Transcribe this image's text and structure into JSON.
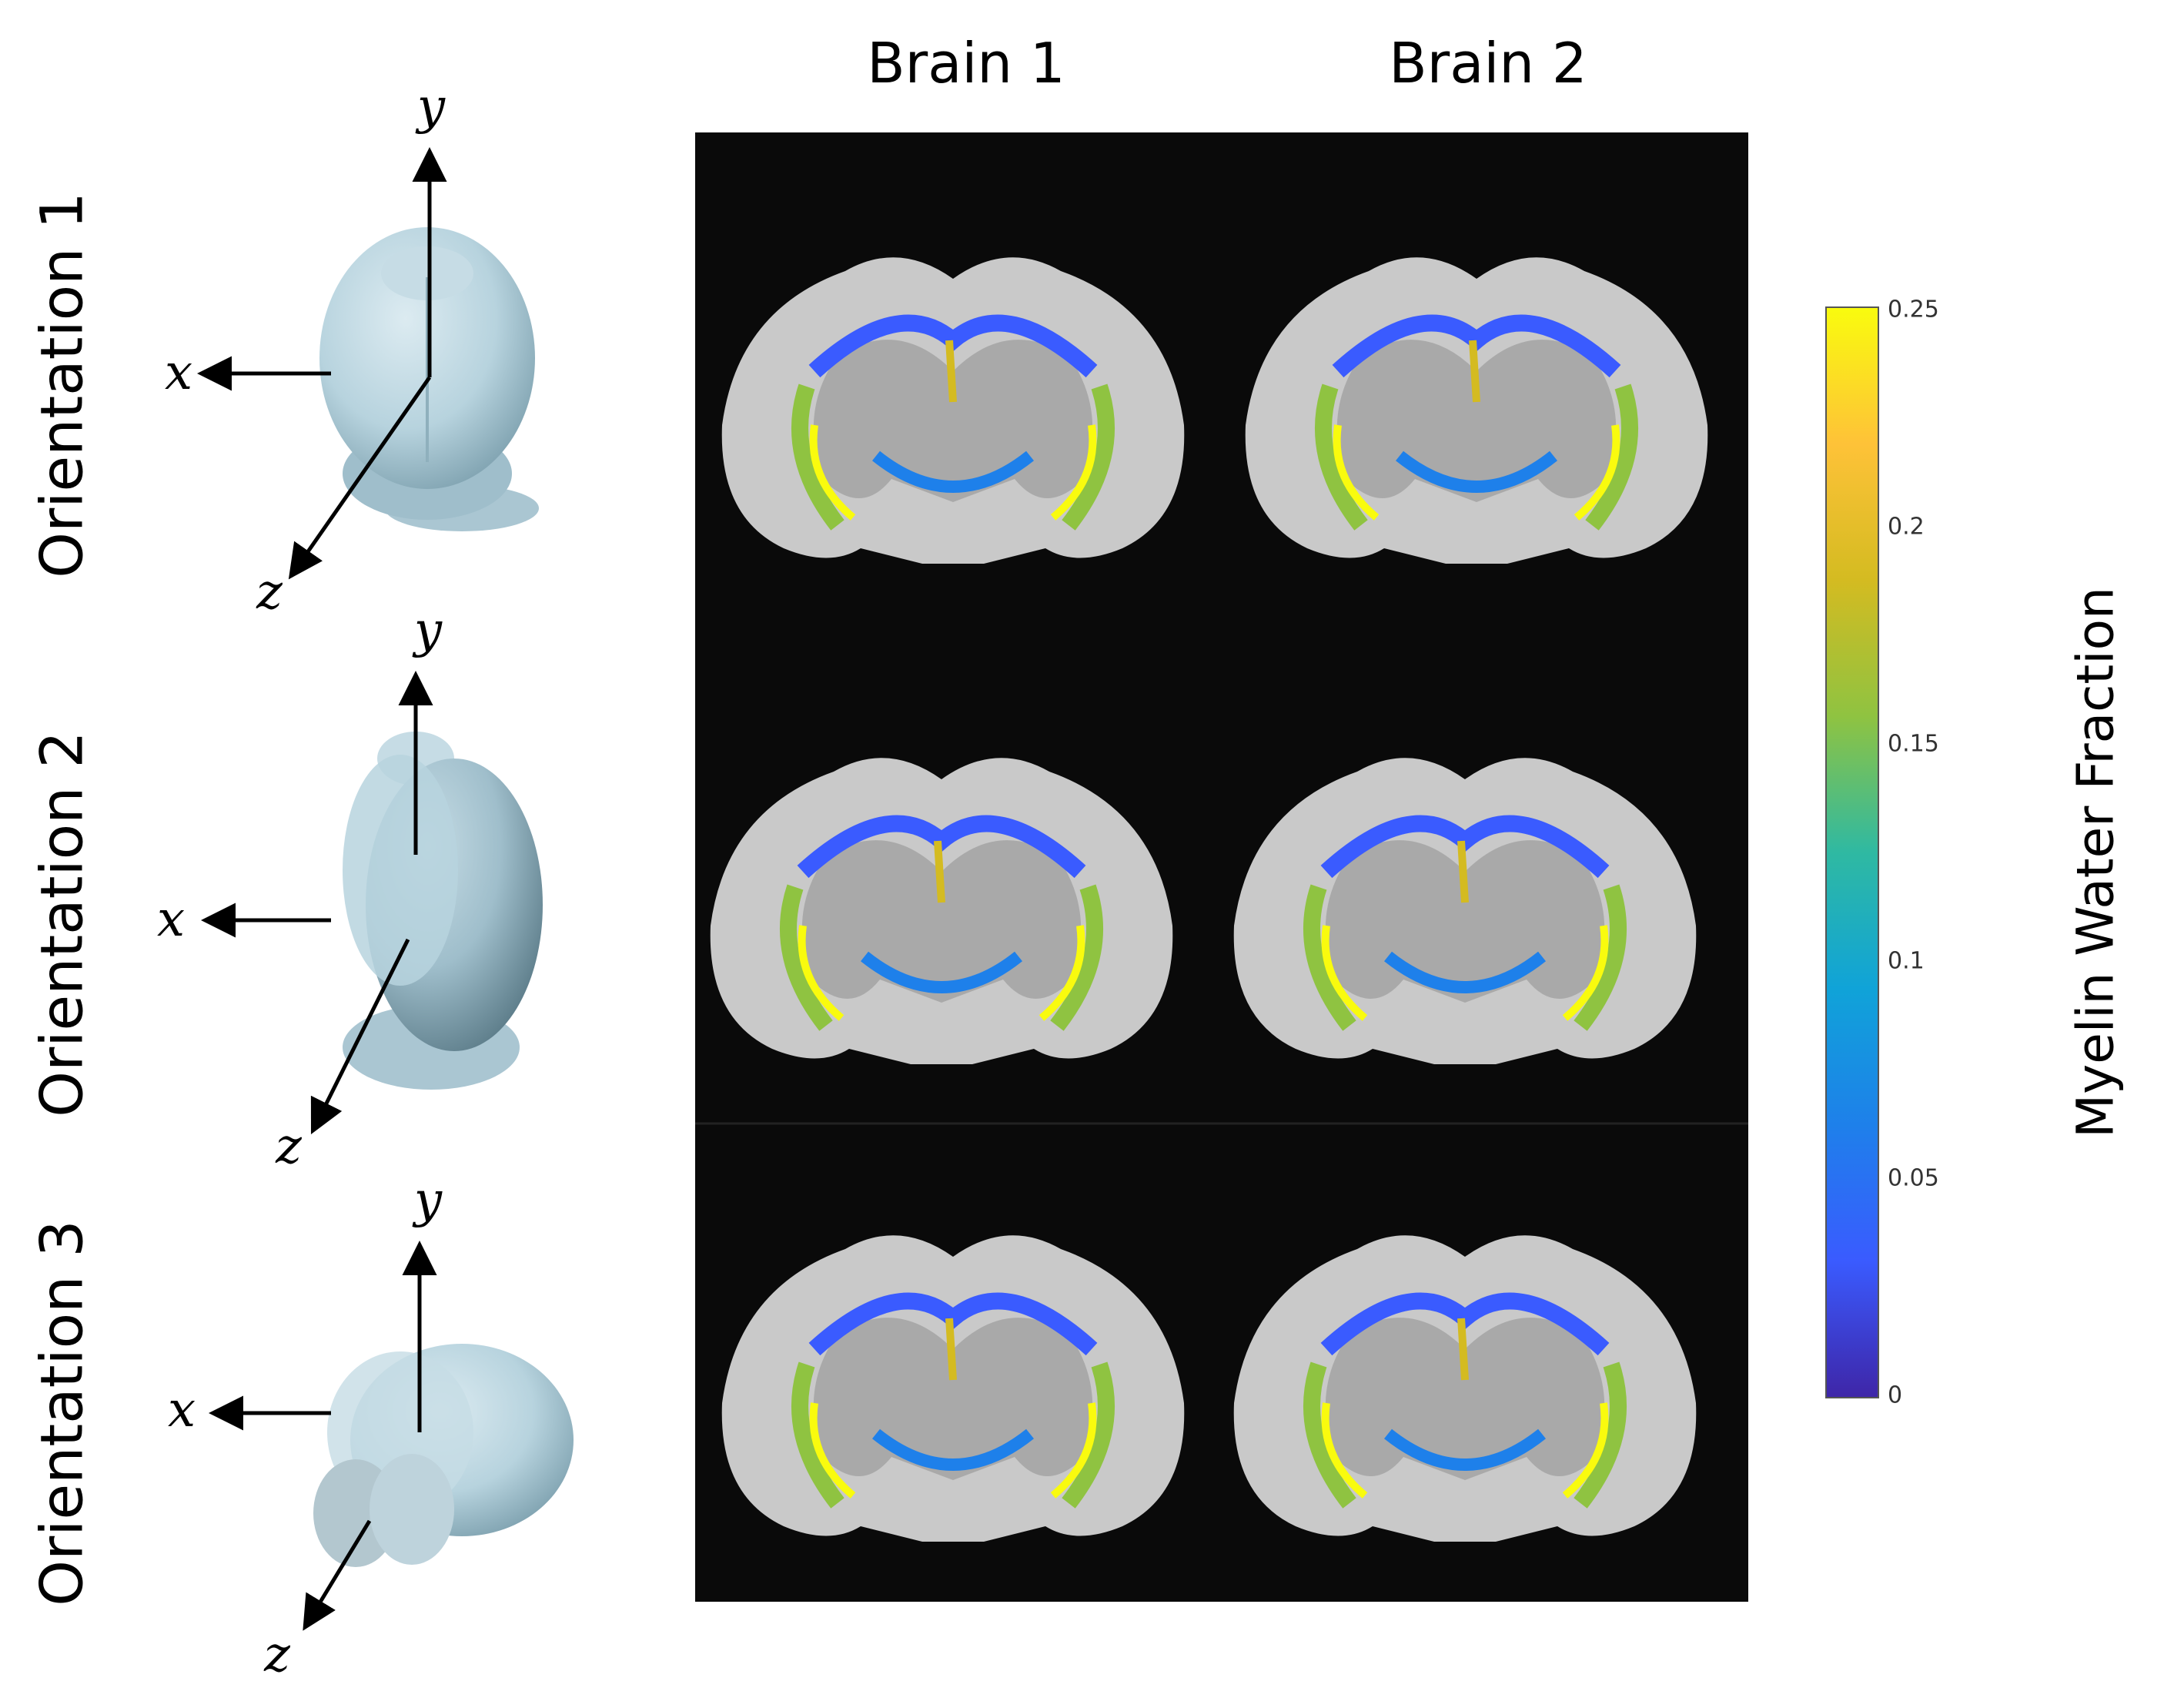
{
  "figure": {
    "columns": [
      "Brain 1",
      "Brain 2"
    ],
    "rows": [
      "Orientation 1",
      "Orientation 2",
      "Orientation 3"
    ],
    "axes": {
      "x": "x",
      "y": "y",
      "z": "z"
    },
    "colorbar": {
      "title": "Myelin Water Fraction",
      "ticks": [
        "0.25",
        "0.2",
        "0.15",
        "0.1",
        "0.05",
        "0"
      ],
      "range": [
        0,
        0.25
      ],
      "colormap": "parula",
      "colors": [
        "#f9fb0e",
        "#fec238",
        "#d4bb21",
        "#8fc341",
        "#2fb9a2",
        "#10a3d8",
        "#1e80ea",
        "#3a5bff",
        "#3e26a8"
      ]
    },
    "palette": {
      "brain_model": "#b7d3de",
      "brain_shadow": "#7fa2b0",
      "mri_background": "#0a0a0a",
      "mri_tissue": "#c9c9c9"
    }
  }
}
